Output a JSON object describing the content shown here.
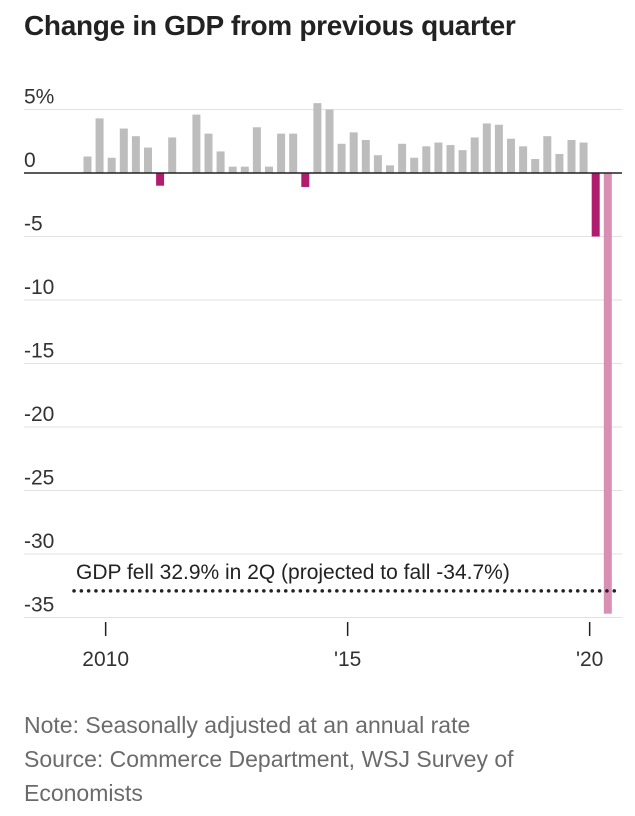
{
  "title": "Change in GDP from previous quarter",
  "note": "Note: Seasonally adjusted at an annual rate",
  "source_line1": "Source: Commerce Department, WSJ Survey of",
  "source_line2": "Economists",
  "colors": {
    "positive_bar": "#bdbdbd",
    "negative_bar": "#b01c6e",
    "projection_bar": "#d98fb3",
    "gridline": "#e2e2e2",
    "baseline": "#222222"
  },
  "chart_data": {
    "type": "bar",
    "title": "Change in GDP from previous quarter",
    "xlabel": "",
    "ylabel": "",
    "ylim": [
      -36,
      6
    ],
    "y_ticks": [
      5,
      0,
      -5,
      -10,
      -15,
      -20,
      -25,
      -30,
      -35
    ],
    "y_tick_labels": [
      "5%",
      "0",
      "-5",
      "-10",
      "-15",
      "-20",
      "-25",
      "-30",
      "-35"
    ],
    "x_tick_labels": [
      "2010",
      "'15",
      "'20"
    ],
    "grid": true,
    "quarters": [
      "2009Q3",
      "2009Q4",
      "2010Q1",
      "2010Q2",
      "2010Q3",
      "2010Q4",
      "2011Q1",
      "2011Q2",
      "2011Q3",
      "2011Q4",
      "2012Q1",
      "2012Q2",
      "2012Q3",
      "2012Q4",
      "2013Q1",
      "2013Q2",
      "2013Q3",
      "2013Q4",
      "2014Q1",
      "2014Q2",
      "2014Q3",
      "2014Q4",
      "2015Q1",
      "2015Q2",
      "2015Q3",
      "2015Q4",
      "2016Q1",
      "2016Q2",
      "2016Q3",
      "2016Q4",
      "2017Q1",
      "2017Q2",
      "2017Q3",
      "2017Q4",
      "2018Q1",
      "2018Q2",
      "2018Q3",
      "2018Q4",
      "2019Q1",
      "2019Q2",
      "2019Q3",
      "2019Q4",
      "2020Q1",
      "2020Q2"
    ],
    "values": [
      1.3,
      4.3,
      1.2,
      3.5,
      2.9,
      2.0,
      -1.0,
      2.8,
      0.0,
      4.6,
      3.1,
      1.7,
      0.5,
      0.5,
      3.6,
      0.5,
      3.1,
      3.1,
      -1.1,
      5.5,
      5.0,
      2.3,
      3.2,
      2.6,
      1.4,
      0.6,
      2.3,
      1.2,
      2.1,
      2.4,
      2.2,
      1.8,
      2.8,
      3.9,
      3.8,
      2.7,
      2.1,
      1.1,
      2.9,
      1.5,
      2.6,
      2.4,
      -5.0,
      -32.9
    ],
    "projection_bar_index": 43,
    "annotation": {
      "text": "GDP fell 32.9% in 2Q (projected to fall -34.7%)",
      "projected_value": -34.7
    }
  }
}
